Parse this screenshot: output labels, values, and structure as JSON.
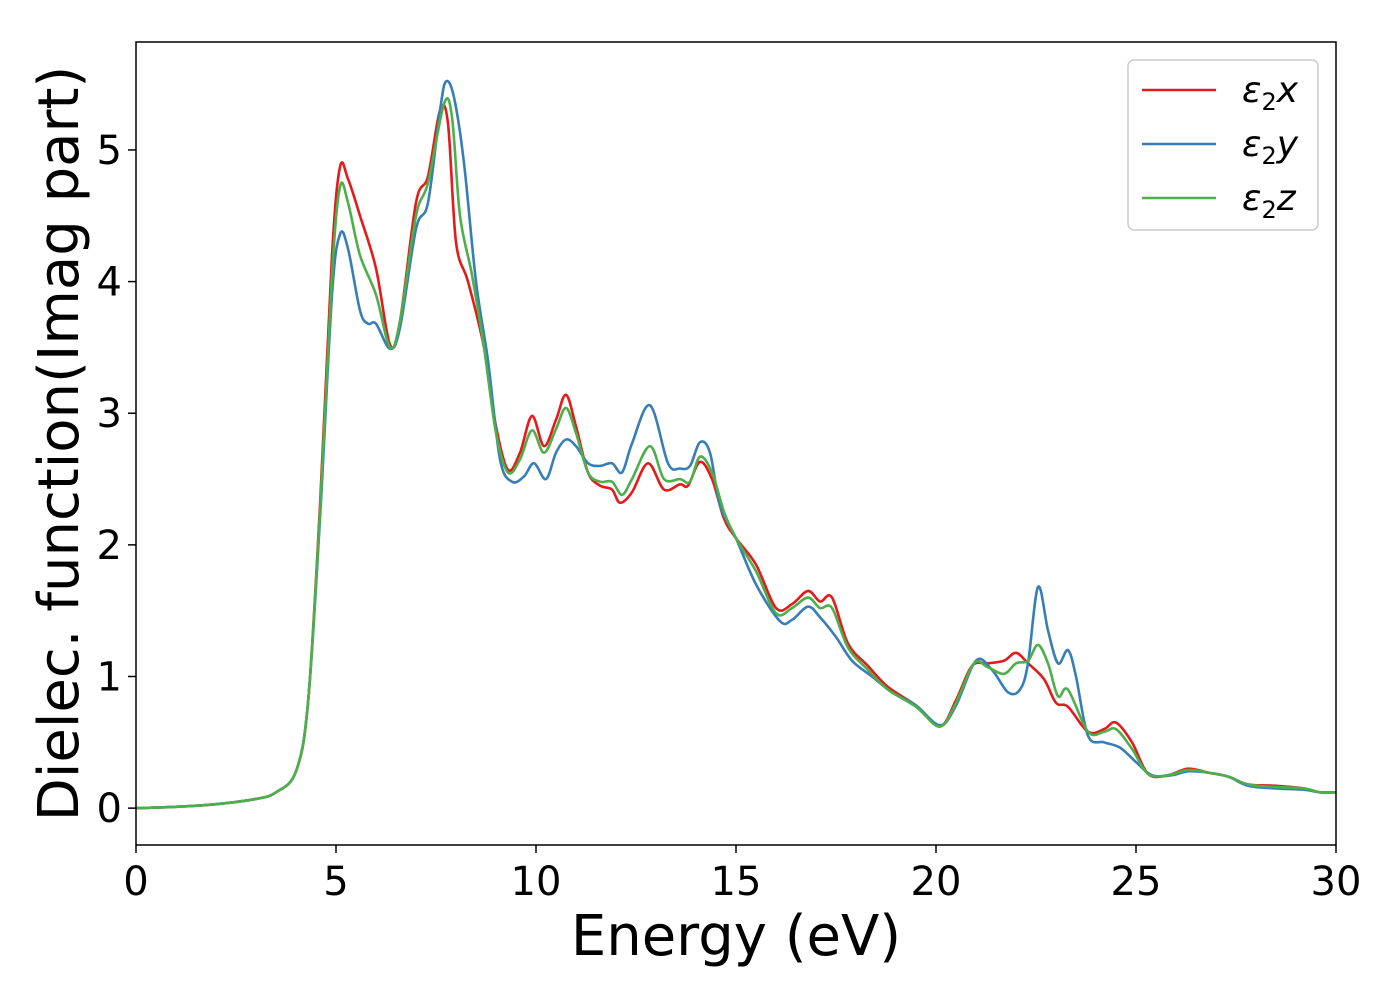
{
  "chart_data": {
    "type": "line",
    "xlabel": "Energy (eV)",
    "ylabel": "Dielec. function(Imag part)",
    "xlim": [
      0,
      30
    ],
    "ylim": [
      -0.28,
      5.82
    ],
    "xticks": [
      0,
      5,
      10,
      15,
      20,
      25,
      30
    ],
    "yticks": [
      0,
      1,
      2,
      3,
      4,
      5
    ],
    "grid": false,
    "legend_position": "top-right",
    "series": [
      {
        "name": "ε2x",
        "legend_base": "ε",
        "legend_sub": "2",
        "legend_suffix": "x",
        "color": "#e41a1c",
        "points": [
          [
            0,
            0
          ],
          [
            1,
            0.01
          ],
          [
            2,
            0.03
          ],
          [
            3,
            0.07
          ],
          [
            3.5,
            0.12
          ],
          [
            4,
            0.28
          ],
          [
            4.3,
            0.8
          ],
          [
            4.6,
            2.3
          ],
          [
            4.9,
            4.2
          ],
          [
            5.1,
            4.87
          ],
          [
            5.3,
            4.78
          ],
          [
            5.6,
            4.5
          ],
          [
            6.0,
            4.1
          ],
          [
            6.35,
            3.52
          ],
          [
            6.6,
            3.7
          ],
          [
            7.0,
            4.6
          ],
          [
            7.3,
            4.8
          ],
          [
            7.6,
            5.3
          ],
          [
            7.8,
            5.2
          ],
          [
            8.0,
            4.3
          ],
          [
            8.3,
            4.0
          ],
          [
            8.7,
            3.5
          ],
          [
            9.0,
            2.9
          ],
          [
            9.3,
            2.57
          ],
          [
            9.6,
            2.7
          ],
          [
            9.9,
            2.98
          ],
          [
            10.2,
            2.75
          ],
          [
            10.5,
            2.95
          ],
          [
            10.75,
            3.14
          ],
          [
            11.0,
            2.9
          ],
          [
            11.3,
            2.55
          ],
          [
            11.6,
            2.45
          ],
          [
            11.9,
            2.42
          ],
          [
            12.1,
            2.32
          ],
          [
            12.4,
            2.4
          ],
          [
            12.8,
            2.62
          ],
          [
            13.2,
            2.42
          ],
          [
            13.6,
            2.46
          ],
          [
            13.8,
            2.45
          ],
          [
            14.1,
            2.63
          ],
          [
            14.4,
            2.5
          ],
          [
            14.7,
            2.2
          ],
          [
            15.0,
            2.05
          ],
          [
            15.5,
            1.85
          ],
          [
            16.0,
            1.52
          ],
          [
            16.4,
            1.55
          ],
          [
            16.8,
            1.65
          ],
          [
            17.1,
            1.57
          ],
          [
            17.4,
            1.6
          ],
          [
            17.8,
            1.25
          ],
          [
            18.3,
            1.08
          ],
          [
            18.8,
            0.92
          ],
          [
            19.5,
            0.78
          ],
          [
            20.1,
            0.62
          ],
          [
            20.5,
            0.82
          ],
          [
            20.9,
            1.08
          ],
          [
            21.3,
            1.1
          ],
          [
            21.7,
            1.12
          ],
          [
            22.0,
            1.18
          ],
          [
            22.3,
            1.1
          ],
          [
            22.7,
            0.98
          ],
          [
            23.0,
            0.8
          ],
          [
            23.3,
            0.77
          ],
          [
            23.8,
            0.58
          ],
          [
            24.2,
            0.6
          ],
          [
            24.5,
            0.65
          ],
          [
            24.9,
            0.5
          ],
          [
            25.3,
            0.26
          ],
          [
            25.8,
            0.25
          ],
          [
            26.3,
            0.3
          ],
          [
            26.8,
            0.27
          ],
          [
            27.3,
            0.24
          ],
          [
            27.8,
            0.18
          ],
          [
            28.5,
            0.17
          ],
          [
            29.2,
            0.15
          ],
          [
            29.6,
            0.12
          ],
          [
            30,
            0.12
          ]
        ]
      },
      {
        "name": "ε2y",
        "legend_base": "ε",
        "legend_sub": "2",
        "legend_suffix": "y",
        "color": "#377eb8",
        "points": [
          [
            0,
            0
          ],
          [
            1,
            0.01
          ],
          [
            2,
            0.03
          ],
          [
            3,
            0.07
          ],
          [
            3.5,
            0.12
          ],
          [
            4,
            0.28
          ],
          [
            4.3,
            0.8
          ],
          [
            4.6,
            2.2
          ],
          [
            4.9,
            3.9
          ],
          [
            5.1,
            4.36
          ],
          [
            5.3,
            4.25
          ],
          [
            5.6,
            3.78
          ],
          [
            5.8,
            3.68
          ],
          [
            6.0,
            3.68
          ],
          [
            6.35,
            3.49
          ],
          [
            6.6,
            3.65
          ],
          [
            7.0,
            4.4
          ],
          [
            7.3,
            4.6
          ],
          [
            7.6,
            5.3
          ],
          [
            7.75,
            5.52
          ],
          [
            7.95,
            5.4
          ],
          [
            8.2,
            4.9
          ],
          [
            8.5,
            4.0
          ],
          [
            8.8,
            3.4
          ],
          [
            9.1,
            2.65
          ],
          [
            9.4,
            2.48
          ],
          [
            9.7,
            2.52
          ],
          [
            9.95,
            2.62
          ],
          [
            10.25,
            2.5
          ],
          [
            10.5,
            2.7
          ],
          [
            10.75,
            2.8
          ],
          [
            11.0,
            2.75
          ],
          [
            11.3,
            2.62
          ],
          [
            11.6,
            2.6
          ],
          [
            11.9,
            2.62
          ],
          [
            12.15,
            2.55
          ],
          [
            12.4,
            2.77
          ],
          [
            12.85,
            3.06
          ],
          [
            13.3,
            2.62
          ],
          [
            13.6,
            2.58
          ],
          [
            13.85,
            2.6
          ],
          [
            14.1,
            2.78
          ],
          [
            14.35,
            2.7
          ],
          [
            14.6,
            2.3
          ],
          [
            15.0,
            2.05
          ],
          [
            15.5,
            1.7
          ],
          [
            16.1,
            1.42
          ],
          [
            16.4,
            1.43
          ],
          [
            16.8,
            1.53
          ],
          [
            17.1,
            1.45
          ],
          [
            17.5,
            1.3
          ],
          [
            17.9,
            1.12
          ],
          [
            18.4,
            1.0
          ],
          [
            18.9,
            0.88
          ],
          [
            19.5,
            0.78
          ],
          [
            20.1,
            0.63
          ],
          [
            20.5,
            0.78
          ],
          [
            21.0,
            1.12
          ],
          [
            21.4,
            1.05
          ],
          [
            21.8,
            0.88
          ],
          [
            22.1,
            0.9
          ],
          [
            22.3,
            1.1
          ],
          [
            22.55,
            1.68
          ],
          [
            22.8,
            1.35
          ],
          [
            23.05,
            1.1
          ],
          [
            23.3,
            1.2
          ],
          [
            23.5,
            1.0
          ],
          [
            23.8,
            0.55
          ],
          [
            24.2,
            0.5
          ],
          [
            24.6,
            0.46
          ],
          [
            25.0,
            0.35
          ],
          [
            25.4,
            0.25
          ],
          [
            25.9,
            0.25
          ],
          [
            26.3,
            0.28
          ],
          [
            26.8,
            0.27
          ],
          [
            27.3,
            0.24
          ],
          [
            27.8,
            0.17
          ],
          [
            28.5,
            0.15
          ],
          [
            29.2,
            0.14
          ],
          [
            29.6,
            0.12
          ],
          [
            30,
            0.12
          ]
        ]
      },
      {
        "name": "ε2z",
        "legend_base": "ε",
        "legend_sub": "2",
        "legend_suffix": "z",
        "color": "#4daf4a",
        "points": [
          [
            0,
            0
          ],
          [
            1,
            0.01
          ],
          [
            2,
            0.03
          ],
          [
            3,
            0.07
          ],
          [
            3.5,
            0.12
          ],
          [
            4,
            0.28
          ],
          [
            4.3,
            0.8
          ],
          [
            4.6,
            2.25
          ],
          [
            4.9,
            4.05
          ],
          [
            5.1,
            4.72
          ],
          [
            5.3,
            4.6
          ],
          [
            5.6,
            4.2
          ],
          [
            6.0,
            3.9
          ],
          [
            6.35,
            3.5
          ],
          [
            6.6,
            3.7
          ],
          [
            7.0,
            4.5
          ],
          [
            7.3,
            4.75
          ],
          [
            7.7,
            5.35
          ],
          [
            7.9,
            5.25
          ],
          [
            8.1,
            4.5
          ],
          [
            8.4,
            4.05
          ],
          [
            8.7,
            3.5
          ],
          [
            9.0,
            2.85
          ],
          [
            9.3,
            2.55
          ],
          [
            9.6,
            2.65
          ],
          [
            9.9,
            2.87
          ],
          [
            10.2,
            2.7
          ],
          [
            10.5,
            2.88
          ],
          [
            10.75,
            3.04
          ],
          [
            11.0,
            2.85
          ],
          [
            11.3,
            2.55
          ],
          [
            11.6,
            2.48
          ],
          [
            11.9,
            2.48
          ],
          [
            12.15,
            2.38
          ],
          [
            12.4,
            2.5
          ],
          [
            12.85,
            2.75
          ],
          [
            13.2,
            2.5
          ],
          [
            13.6,
            2.5
          ],
          [
            13.85,
            2.48
          ],
          [
            14.1,
            2.67
          ],
          [
            14.4,
            2.55
          ],
          [
            14.7,
            2.25
          ],
          [
            15.0,
            2.05
          ],
          [
            15.5,
            1.8
          ],
          [
            16.0,
            1.48
          ],
          [
            16.4,
            1.52
          ],
          [
            16.8,
            1.6
          ],
          [
            17.1,
            1.52
          ],
          [
            17.4,
            1.52
          ],
          [
            17.8,
            1.22
          ],
          [
            18.3,
            1.05
          ],
          [
            18.8,
            0.9
          ],
          [
            19.5,
            0.77
          ],
          [
            20.1,
            0.62
          ],
          [
            20.5,
            0.8
          ],
          [
            20.95,
            1.1
          ],
          [
            21.3,
            1.07
          ],
          [
            21.7,
            1.02
          ],
          [
            22.0,
            1.1
          ],
          [
            22.3,
            1.12
          ],
          [
            22.55,
            1.24
          ],
          [
            22.8,
            1.1
          ],
          [
            23.05,
            0.85
          ],
          [
            23.3,
            0.9
          ],
          [
            23.8,
            0.58
          ],
          [
            24.2,
            0.58
          ],
          [
            24.5,
            0.6
          ],
          [
            24.9,
            0.45
          ],
          [
            25.3,
            0.26
          ],
          [
            25.8,
            0.25
          ],
          [
            26.3,
            0.29
          ],
          [
            26.8,
            0.27
          ],
          [
            27.3,
            0.24
          ],
          [
            27.8,
            0.18
          ],
          [
            28.5,
            0.16
          ],
          [
            29.2,
            0.15
          ],
          [
            29.6,
            0.12
          ],
          [
            30,
            0.12
          ]
        ]
      }
    ]
  }
}
